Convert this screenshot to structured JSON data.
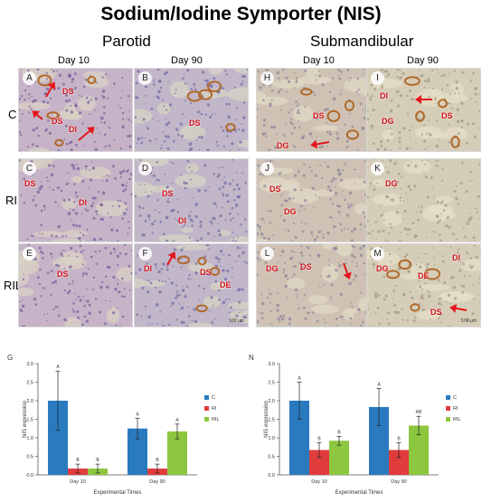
{
  "figure": {
    "title": "Sodium/Iodine Symporter (NIS)",
    "sections": {
      "left": "Parotid",
      "right": "Submandibular"
    },
    "day_headers": [
      "Day 10",
      "Day 90",
      "Day 10",
      "Day 90"
    ],
    "row_labels": [
      "C",
      "RI",
      "RIL"
    ],
    "panel_letters": [
      "A",
      "B",
      "H",
      "I",
      "C",
      "D",
      "J",
      "K",
      "E",
      "F",
      "L",
      "M"
    ],
    "tissue_labels": {
      "A": [
        "DS",
        "DS",
        "DI"
      ],
      "B": [
        "DS"
      ],
      "H": [
        "DS",
        "DG"
      ],
      "I": [
        "DI",
        "DG",
        "DS"
      ],
      "C": [
        "DS",
        "DI"
      ],
      "D": [
        "DS",
        "DI"
      ],
      "J": [
        "DS",
        "DG"
      ],
      "K": [
        "DG"
      ],
      "E": [
        "DS"
      ],
      "F": [
        "DI",
        "DS",
        "DE"
      ],
      "L": [
        "DG",
        "DS"
      ],
      "M": [
        "DG",
        "DE",
        "DI",
        "DS"
      ]
    },
    "scale_bar": "100 μm",
    "colors": {
      "C": "#2a7ac0",
      "RI": "#e03c3c",
      "RIL": "#8dc63f",
      "label": "#d4141c"
    }
  },
  "chart_data": [
    {
      "type": "bar",
      "panel": "G",
      "categories": [
        "Day 10",
        "Day 90"
      ],
      "xlabel": "Experimental Times",
      "ylabel": "NIS expression",
      "ylim": [
        0,
        3.0
      ],
      "yticks": [
        "0.0",
        "0.5",
        "1.0",
        "1.5",
        "2.0",
        "2.5",
        "3.0"
      ],
      "series": [
        {
          "name": "C",
          "values": [
            2.0,
            1.25
          ],
          "errors": [
            0.8,
            0.28
          ],
          "letters": [
            "A",
            "A"
          ]
        },
        {
          "name": "RI",
          "values": [
            0.17,
            0.17
          ],
          "errors": [
            0.12,
            0.12
          ],
          "letters": [
            "B",
            "B"
          ]
        },
        {
          "name": "RIL",
          "values": [
            0.17,
            1.17
          ],
          "errors": [
            0.12,
            0.2
          ],
          "letters": [
            "B",
            "A"
          ]
        }
      ],
      "legend": "right"
    },
    {
      "type": "bar",
      "panel": "N",
      "categories": [
        "Day 10",
        "Day 90"
      ],
      "xlabel": "Experimental Times",
      "ylabel": "NIS expression",
      "ylim": [
        0,
        3.0
      ],
      "yticks": [
        "0.0",
        "0.5",
        "1.0",
        "1.5",
        "2.0",
        "2.5",
        "3.0"
      ],
      "series": [
        {
          "name": "C",
          "values": [
            2.0,
            1.83
          ],
          "errors": [
            0.5,
            0.5
          ],
          "letters": [
            "A",
            "A"
          ]
        },
        {
          "name": "RI",
          "values": [
            0.67,
            0.67
          ],
          "errors": [
            0.2,
            0.2
          ],
          "letters": [
            "B",
            "B"
          ]
        },
        {
          "name": "RIL",
          "values": [
            0.92,
            1.33
          ],
          "errors": [
            0.12,
            0.25
          ],
          "letters": [
            "B",
            "AB"
          ]
        }
      ],
      "legend": "right"
    }
  ]
}
